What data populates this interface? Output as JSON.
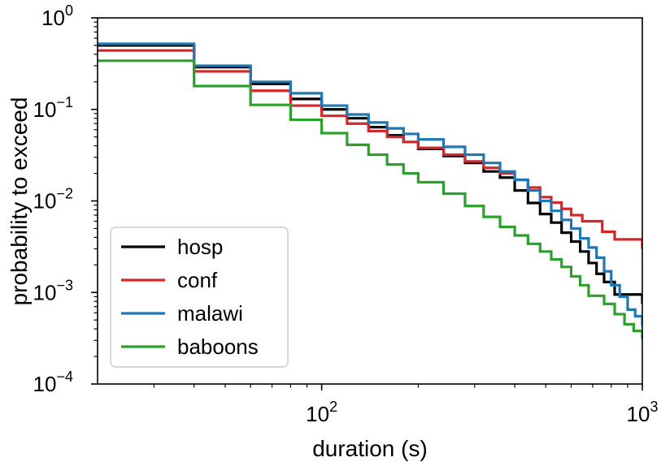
{
  "chart_data": {
    "type": "line",
    "xscale": "log",
    "yscale": "log",
    "xlabel": "duration (s)",
    "ylabel": "probability to exceed",
    "xlim": [
      20,
      1000
    ],
    "ylim": [
      0.0001,
      1
    ],
    "xticks": [
      {
        "value": 100,
        "base": "10",
        "exp": "2"
      },
      {
        "value": 1000,
        "base": "10",
        "exp": "3"
      }
    ],
    "yticks": [
      {
        "value": 1,
        "base": "10",
        "exp": "0"
      },
      {
        "value": 0.1,
        "base": "10",
        "exp": "−1"
      },
      {
        "value": 0.01,
        "base": "10",
        "exp": "−2"
      },
      {
        "value": 0.001,
        "base": "10",
        "exp": "−3"
      },
      {
        "value": 0.0001,
        "base": "10",
        "exp": "−4"
      }
    ],
    "legend": {
      "location": "lower-left"
    },
    "series": [
      {
        "name": "hosp",
        "color": "#000000",
        "points": [
          [
            20,
            0.5
          ],
          [
            40,
            0.5
          ],
          [
            40,
            0.29
          ],
          [
            60,
            0.29
          ],
          [
            60,
            0.19
          ],
          [
            80,
            0.19
          ],
          [
            80,
            0.13
          ],
          [
            100,
            0.13
          ],
          [
            100,
            0.1
          ],
          [
            120,
            0.1
          ],
          [
            120,
            0.08
          ],
          [
            140,
            0.08
          ],
          [
            140,
            0.064
          ],
          [
            160,
            0.064
          ],
          [
            160,
            0.052
          ],
          [
            180,
            0.052
          ],
          [
            180,
            0.044
          ],
          [
            200,
            0.044
          ],
          [
            200,
            0.037
          ],
          [
            240,
            0.037
          ],
          [
            240,
            0.031
          ],
          [
            280,
            0.031
          ],
          [
            280,
            0.026
          ],
          [
            320,
            0.026
          ],
          [
            320,
            0.021
          ],
          [
            360,
            0.021
          ],
          [
            360,
            0.018
          ],
          [
            400,
            0.018
          ],
          [
            400,
            0.013
          ],
          [
            440,
            0.013
          ],
          [
            440,
            0.0095
          ],
          [
            480,
            0.0095
          ],
          [
            480,
            0.0072
          ],
          [
            520,
            0.0072
          ],
          [
            520,
            0.0058
          ],
          [
            560,
            0.0058
          ],
          [
            560,
            0.0045
          ],
          [
            600,
            0.0045
          ],
          [
            600,
            0.0036
          ],
          [
            640,
            0.0036
          ],
          [
            640,
            0.0028
          ],
          [
            680,
            0.0028
          ],
          [
            680,
            0.0021
          ],
          [
            720,
            0.0021
          ],
          [
            720,
            0.0016
          ],
          [
            760,
            0.0016
          ],
          [
            760,
            0.0013
          ],
          [
            820,
            0.0013
          ],
          [
            820,
            0.00095
          ],
          [
            1000,
            0.00095
          ],
          [
            1000,
            0.00075
          ]
        ]
      },
      {
        "name": "conf",
        "color": "#d62728",
        "points": [
          [
            20,
            0.44
          ],
          [
            40,
            0.44
          ],
          [
            40,
            0.26
          ],
          [
            60,
            0.26
          ],
          [
            60,
            0.16
          ],
          [
            80,
            0.16
          ],
          [
            80,
            0.11
          ],
          [
            100,
            0.11
          ],
          [
            100,
            0.085
          ],
          [
            120,
            0.085
          ],
          [
            120,
            0.07
          ],
          [
            140,
            0.07
          ],
          [
            140,
            0.058
          ],
          [
            160,
            0.058
          ],
          [
            160,
            0.05
          ],
          [
            180,
            0.05
          ],
          [
            180,
            0.044
          ],
          [
            200,
            0.044
          ],
          [
            200,
            0.038
          ],
          [
            240,
            0.038
          ],
          [
            240,
            0.032
          ],
          [
            280,
            0.032
          ],
          [
            280,
            0.027
          ],
          [
            320,
            0.027
          ],
          [
            320,
            0.023
          ],
          [
            360,
            0.023
          ],
          [
            360,
            0.02
          ],
          [
            400,
            0.02
          ],
          [
            400,
            0.017
          ],
          [
            440,
            0.017
          ],
          [
            440,
            0.014
          ],
          [
            480,
            0.014
          ],
          [
            480,
            0.011
          ],
          [
            520,
            0.011
          ],
          [
            520,
            0.0096
          ],
          [
            560,
            0.0096
          ],
          [
            560,
            0.0082
          ],
          [
            600,
            0.0082
          ],
          [
            600,
            0.007
          ],
          [
            650,
            0.007
          ],
          [
            650,
            0.006
          ],
          [
            750,
            0.006
          ],
          [
            750,
            0.0046
          ],
          [
            820,
            0.0046
          ],
          [
            820,
            0.0038
          ],
          [
            1000,
            0.0038
          ],
          [
            1000,
            0.003
          ]
        ]
      },
      {
        "name": "malawi",
        "color": "#1f77b4",
        "points": [
          [
            20,
            0.52
          ],
          [
            40,
            0.52
          ],
          [
            40,
            0.3
          ],
          [
            60,
            0.3
          ],
          [
            60,
            0.2
          ],
          [
            80,
            0.2
          ],
          [
            80,
            0.15
          ],
          [
            100,
            0.15
          ],
          [
            100,
            0.11
          ],
          [
            120,
            0.11
          ],
          [
            120,
            0.088
          ],
          [
            140,
            0.088
          ],
          [
            140,
            0.072
          ],
          [
            160,
            0.072
          ],
          [
            160,
            0.062
          ],
          [
            180,
            0.062
          ],
          [
            180,
            0.054
          ],
          [
            200,
            0.054
          ],
          [
            200,
            0.047
          ],
          [
            240,
            0.047
          ],
          [
            240,
            0.039
          ],
          [
            280,
            0.039
          ],
          [
            280,
            0.032
          ],
          [
            320,
            0.032
          ],
          [
            320,
            0.026
          ],
          [
            360,
            0.026
          ],
          [
            360,
            0.021
          ],
          [
            400,
            0.021
          ],
          [
            400,
            0.017
          ],
          [
            440,
            0.017
          ],
          [
            440,
            0.013
          ],
          [
            480,
            0.013
          ],
          [
            480,
            0.01
          ],
          [
            520,
            0.01
          ],
          [
            520,
            0.0078
          ],
          [
            560,
            0.0078
          ],
          [
            560,
            0.0062
          ],
          [
            600,
            0.0062
          ],
          [
            600,
            0.005
          ],
          [
            640,
            0.005
          ],
          [
            640,
            0.0039
          ],
          [
            680,
            0.0039
          ],
          [
            680,
            0.0031
          ],
          [
            720,
            0.0031
          ],
          [
            720,
            0.0024
          ],
          [
            760,
            0.0024
          ],
          [
            760,
            0.0017
          ],
          [
            800,
            0.0017
          ],
          [
            800,
            0.0012
          ],
          [
            850,
            0.0012
          ],
          [
            850,
            0.0009
          ],
          [
            900,
            0.0009
          ],
          [
            900,
            0.00065
          ],
          [
            950,
            0.00065
          ],
          [
            950,
            0.00055
          ],
          [
            1000,
            0.00055
          ],
          [
            1000,
            0.00043
          ]
        ]
      },
      {
        "name": "baboons",
        "color": "#2ca02c",
        "points": [
          [
            20,
            0.34
          ],
          [
            40,
            0.34
          ],
          [
            40,
            0.18
          ],
          [
            60,
            0.18
          ],
          [
            60,
            0.112
          ],
          [
            80,
            0.112
          ],
          [
            80,
            0.077
          ],
          [
            100,
            0.077
          ],
          [
            100,
            0.055
          ],
          [
            120,
            0.055
          ],
          [
            120,
            0.041
          ],
          [
            140,
            0.041
          ],
          [
            140,
            0.032
          ],
          [
            160,
            0.032
          ],
          [
            160,
            0.025
          ],
          [
            180,
            0.025
          ],
          [
            180,
            0.02
          ],
          [
            200,
            0.02
          ],
          [
            200,
            0.016
          ],
          [
            240,
            0.016
          ],
          [
            240,
            0.012
          ],
          [
            280,
            0.012
          ],
          [
            280,
            0.0088
          ],
          [
            320,
            0.0088
          ],
          [
            320,
            0.0067
          ],
          [
            360,
            0.0067
          ],
          [
            360,
            0.0052
          ],
          [
            400,
            0.0052
          ],
          [
            400,
            0.0042
          ],
          [
            440,
            0.0042
          ],
          [
            440,
            0.0034
          ],
          [
            480,
            0.0034
          ],
          [
            480,
            0.0028
          ],
          [
            520,
            0.0028
          ],
          [
            520,
            0.0023
          ],
          [
            560,
            0.0023
          ],
          [
            560,
            0.0019
          ],
          [
            600,
            0.0019
          ],
          [
            600,
            0.0015
          ],
          [
            640,
            0.0015
          ],
          [
            640,
            0.0012
          ],
          [
            680,
            0.0012
          ],
          [
            680,
            0.00092
          ],
          [
            760,
            0.00092
          ],
          [
            760,
            0.00075
          ],
          [
            820,
            0.00075
          ],
          [
            820,
            0.00058
          ],
          [
            880,
            0.00058
          ],
          [
            880,
            0.00045
          ],
          [
            940,
            0.00045
          ],
          [
            940,
            0.00038
          ],
          [
            1000,
            0.00038
          ],
          [
            1000,
            0.00031
          ]
        ]
      }
    ]
  }
}
